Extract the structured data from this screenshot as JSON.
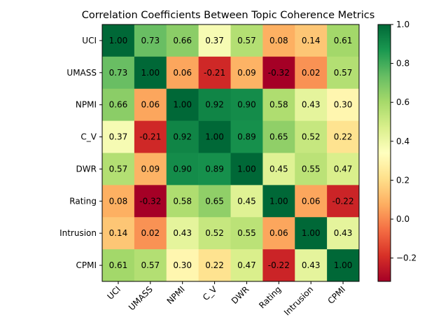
{
  "chart_data": {
    "type": "heatmap",
    "title": "Correlation Coefficients Between Topic Coherence Metrics",
    "xlabel": "",
    "ylabel": "",
    "row_labels": [
      "UCI",
      "UMASS",
      "NPMI",
      "C_V",
      "DWR",
      "Rating",
      "Intrusion",
      "CPMI"
    ],
    "col_labels": [
      "UCI",
      "UMASS",
      "NPMI",
      "C_V",
      "DWR",
      "Rating",
      "Intrusion",
      "CPMI"
    ],
    "values": [
      [
        1.0,
        0.73,
        0.66,
        0.37,
        0.57,
        0.08,
        0.14,
        0.61
      ],
      [
        0.73,
        1.0,
        0.06,
        -0.21,
        0.09,
        -0.32,
        0.02,
        0.57
      ],
      [
        0.66,
        0.06,
        1.0,
        0.92,
        0.9,
        0.58,
        0.43,
        0.3
      ],
      [
        0.37,
        -0.21,
        0.92,
        1.0,
        0.89,
        0.65,
        0.52,
        0.22
      ],
      [
        0.57,
        0.09,
        0.9,
        0.89,
        1.0,
        0.45,
        0.55,
        0.47
      ],
      [
        0.08,
        -0.32,
        0.58,
        0.65,
        0.45,
        1.0,
        0.06,
        -0.22
      ],
      [
        0.14,
        0.02,
        0.43,
        0.52,
        0.55,
        0.06,
        1.0,
        0.43
      ],
      [
        0.61,
        0.57,
        0.3,
        0.22,
        0.47,
        -0.22,
        0.43,
        1.0
      ]
    ],
    "cell_labels": [
      [
        "1.00",
        "0.73",
        "0.66",
        "0.37",
        "0.57",
        "0.08",
        "0.14",
        "0.61"
      ],
      [
        "0.73",
        "1.00",
        "0.06",
        "-0.21",
        "0.09",
        "-0.32",
        "0.02",
        "0.57"
      ],
      [
        "0.66",
        "0.06",
        "1.00",
        "0.92",
        "0.90",
        "0.58",
        "0.43",
        "0.30"
      ],
      [
        "0.37",
        "-0.21",
        "0.92",
        "1.00",
        "0.89",
        "0.65",
        "0.52",
        "0.22"
      ],
      [
        "0.57",
        "0.09",
        "0.90",
        "0.89",
        "1.00",
        "0.45",
        "0.55",
        "0.47"
      ],
      [
        "0.08",
        "-0.32",
        "0.58",
        "0.65",
        "0.45",
        "1.00",
        "0.06",
        "-0.22"
      ],
      [
        "0.14",
        "0.02",
        "0.43",
        "0.52",
        "0.55",
        "0.06",
        "1.00",
        "0.43"
      ],
      [
        "0.61",
        "0.57",
        "0.30",
        "0.22",
        "0.47",
        "-0.22",
        "0.43",
        "1.00"
      ]
    ],
    "colormap": "RdYlGn",
    "vmin": -0.32,
    "vmax": 1.0,
    "colorbar": {
      "ticks": [
        -0.2,
        0.0,
        0.2,
        0.4,
        0.6,
        0.8,
        1.0
      ],
      "tick_labels": [
        "−0.2",
        "0.0",
        "0.2",
        "0.4",
        "0.6",
        "0.8",
        "1.0"
      ],
      "placement": "right"
    }
  }
}
